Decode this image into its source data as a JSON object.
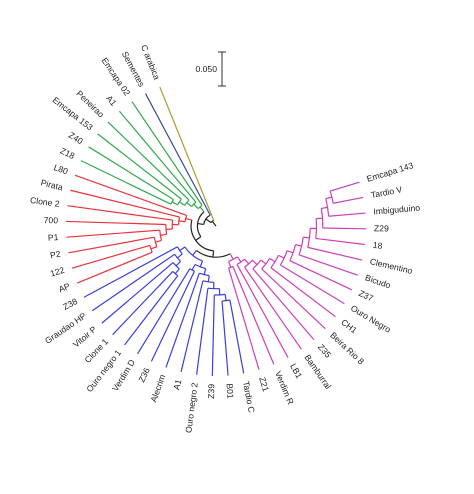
{
  "scale_bar": {
    "label": "0.050"
  },
  "clade_colors": {
    "magenta": "#cc3fb8",
    "blue": "#3b3fd6",
    "red": "#e8333a",
    "green": "#2fa84a",
    "navy": "#3a4a9c",
    "olive": "#a79b2e",
    "root": "#222222"
  },
  "taxa": [
    {
      "name": "Emcapa 143",
      "clade": "magenta"
    },
    {
      "name": "Tardio V",
      "clade": "magenta"
    },
    {
      "name": "Imbiguduino",
      "clade": "magenta"
    },
    {
      "name": "Z29",
      "clade": "magenta"
    },
    {
      "name": "18",
      "clade": "magenta"
    },
    {
      "name": "Clementino",
      "clade": "magenta"
    },
    {
      "name": "Bicudo",
      "clade": "magenta"
    },
    {
      "name": "Z37",
      "clade": "magenta"
    },
    {
      "name": "Ouro Negro",
      "clade": "magenta"
    },
    {
      "name": "CH1",
      "clade": "magenta"
    },
    {
      "name": "Beira Rio 8",
      "clade": "magenta"
    },
    {
      "name": "Z35",
      "clade": "magenta"
    },
    {
      "name": "Bamburral",
      "clade": "magenta"
    },
    {
      "name": "LB1",
      "clade": "magenta"
    },
    {
      "name": "Verdim R",
      "clade": "magenta"
    },
    {
      "name": "Z21",
      "clade": "magenta"
    },
    {
      "name": "Tardio C",
      "clade": "blue"
    },
    {
      "name": "B01",
      "clade": "blue"
    },
    {
      "name": "Z39",
      "clade": "blue"
    },
    {
      "name": "Ouro negro 2",
      "clade": "blue"
    },
    {
      "name": "A1",
      "clade": "blue"
    },
    {
      "name": "Alecrim",
      "clade": "blue"
    },
    {
      "name": "Z36",
      "clade": "blue"
    },
    {
      "name": "Verdim D",
      "clade": "blue"
    },
    {
      "name": "Ouro negro 1",
      "clade": "blue"
    },
    {
      "name": "Clone 1",
      "clade": "blue"
    },
    {
      "name": "Vitoir P",
      "clade": "blue"
    },
    {
      "name": "Graudao HP",
      "clade": "blue"
    },
    {
      "name": "Z38",
      "clade": "blue"
    },
    {
      "name": "AP",
      "clade": "red"
    },
    {
      "name": "122",
      "clade": "red"
    },
    {
      "name": "P2",
      "clade": "red"
    },
    {
      "name": "P1",
      "clade": "red"
    },
    {
      "name": "700",
      "clade": "red"
    },
    {
      "name": "Clone 2",
      "clade": "red"
    },
    {
      "name": "Pirata",
      "clade": "red"
    },
    {
      "name": "L80",
      "clade": "red"
    },
    {
      "name": "Z18",
      "clade": "green"
    },
    {
      "name": "Z40",
      "clade": "green"
    },
    {
      "name": "Emcapa 153",
      "clade": "green"
    },
    {
      "name": "Peneirao",
      "clade": "green"
    },
    {
      "name": "A1",
      "clade": "green"
    },
    {
      "name": "Emcapa 02",
      "clade": "green"
    },
    {
      "name": "Sementes",
      "clade": "navy"
    },
    {
      "name": "C arabica",
      "clade": "olive"
    }
  ],
  "tree_newick": "(C arabica,(Sementes,((Emcapa 02,(A1,(Peneirao,(Emcapa 153,(Z40,Z18))))),((L80,(Pirata,(Clone 2,(700,(P1,(P2,(122,AP))))))),(((Z38,(Graudao HP,(Vitoir P,(Clone 1,Ouro negro 1)))),((Verdim D,Z36),(Alecrim,(A1,(Ouro negro 2,(Z39,(B01,Tardio C))))))),((Z21,Verdim R),(LB1,(Bamburral,(Z35,(Beira Rio 8,(CH1,(Ouro Negro,(Z37,(Bicudo,(Clementino,(18,(Z29,(Imbiguduino,(Tardio V,Emcapa 143)))))))))))))))))));"
}
